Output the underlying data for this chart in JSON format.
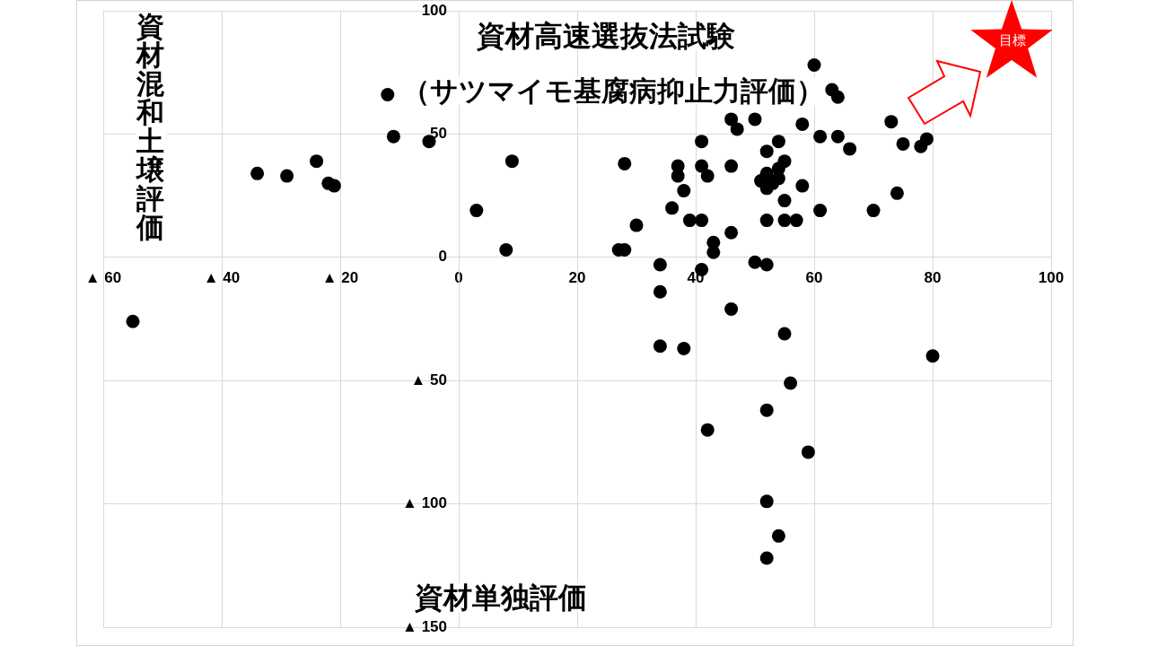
{
  "chart_data": {
    "type": "scatter",
    "title": "資材高速選抜法試験",
    "subtitle": "（サツマイモ基腐病抑止力評価）",
    "xlabel": "資材単独評価",
    "ylabel": "資材混和土壌評価",
    "annotations": [
      "目標"
    ],
    "x": [
      -55,
      -34,
      -29,
      -24,
      -22,
      -21,
      -12,
      -11,
      -5,
      3,
      8,
      9,
      27,
      28,
      28,
      30,
      34,
      36,
      37,
      37,
      38,
      39,
      41,
      41,
      42,
      41,
      41,
      43,
      43,
      46,
      46,
      46,
      47,
      50,
      58,
      60,
      63,
      64,
      61,
      64,
      66,
      73,
      75,
      78,
      79,
      74,
      70,
      61,
      58,
      54,
      52,
      55,
      54,
      52,
      54,
      51,
      53,
      52,
      55,
      52,
      55,
      57,
      50,
      52,
      34,
      46,
      55,
      34,
      38,
      80,
      56,
      52,
      42,
      59,
      52,
      54,
      52
    ],
    "values": [
      -26,
      34,
      33,
      39,
      30,
      29,
      66,
      49,
      47,
      19,
      3,
      39,
      3,
      3,
      38,
      13,
      -3,
      20,
      33,
      37,
      27,
      15,
      15,
      37,
      33,
      47,
      -5,
      2,
      6,
      10,
      37,
      56,
      52,
      56,
      54,
      78,
      68,
      65,
      49,
      49,
      44,
      55,
      46,
      45,
      48,
      26,
      19,
      19,
      29,
      47,
      43,
      39,
      36,
      34,
      32,
      31,
      30,
      28,
      23,
      15,
      15,
      15,
      -2,
      -3,
      -14,
      -21,
      -31,
      -36,
      -37,
      -40,
      -51,
      -62,
      -70,
      -79,
      -99,
      -113,
      -122
    ],
    "color": "#000000",
    "marker": "circle",
    "grid": true,
    "xlim": [
      -60,
      100
    ],
    "xticks": [
      {
        "value": -60,
        "label": "▲ 60"
      },
      {
        "value": -40,
        "label": "▲ 40"
      },
      {
        "value": -20,
        "label": "▲ 20"
      },
      0,
      20,
      40,
      60,
      80,
      100
    ],
    "ylim": [
      -150,
      100
    ],
    "yticks": [
      {
        "value": -150,
        "label": "▲ 150"
      },
      {
        "value": -100,
        "label": "▲ 100"
      },
      {
        "value": -50,
        "label": "▲ 50"
      },
      0,
      50,
      100
    ]
  }
}
